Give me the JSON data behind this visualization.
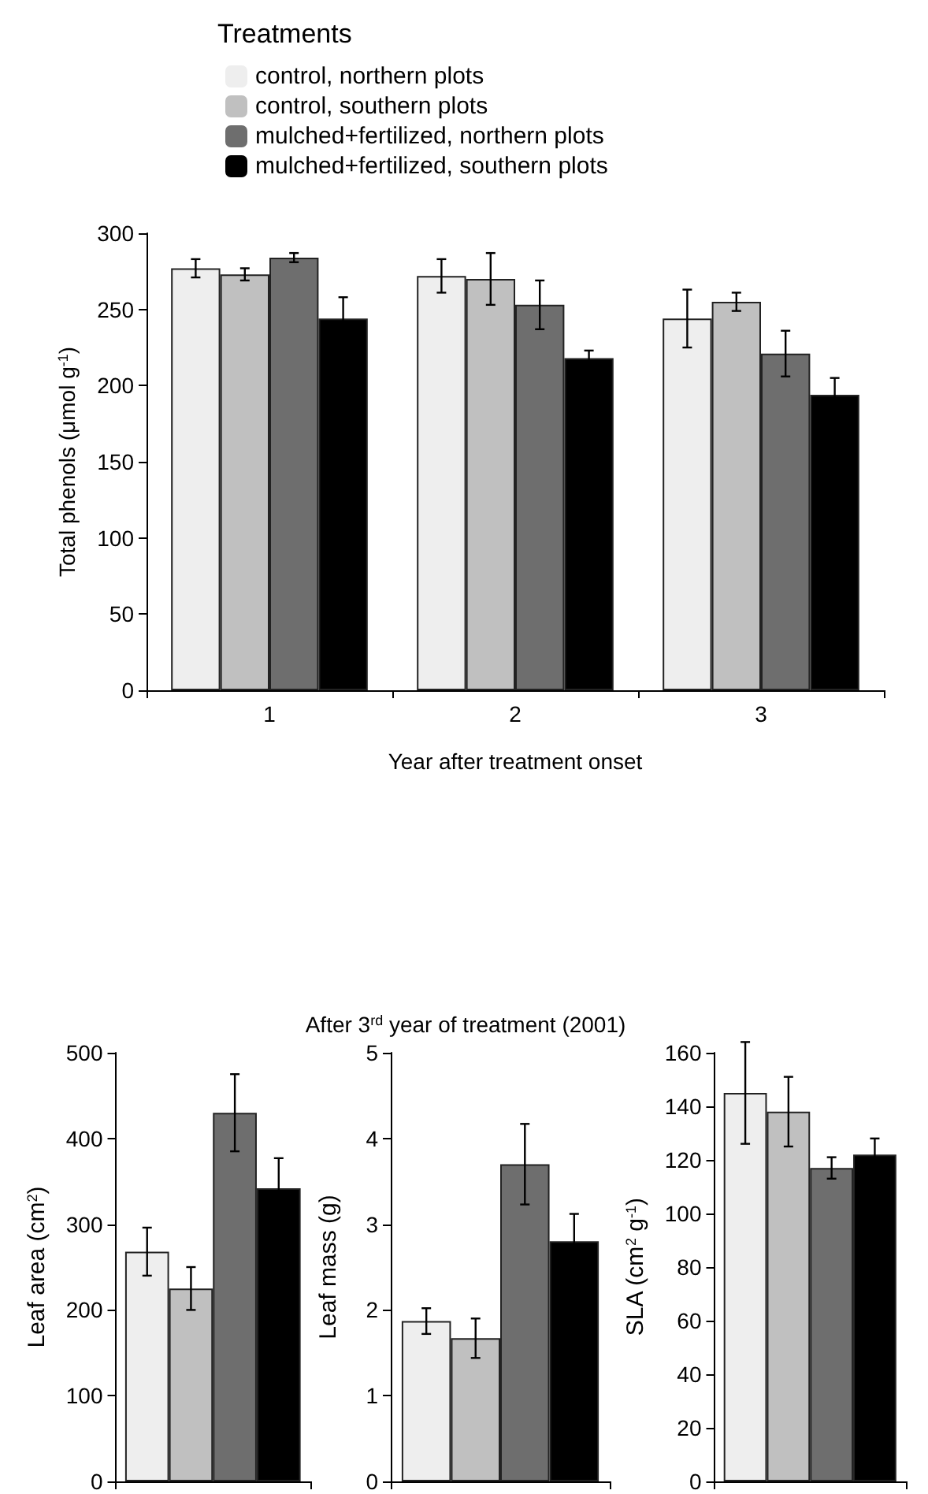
{
  "chart_data": [
    {
      "type": "bar",
      "categories": [
        "1",
        "2",
        "3"
      ],
      "xlabel": "Year after treatment onset",
      "ylabel": "Total phenols (μmol g$^{-1}$)",
      "legend_title": "Treatments",
      "legend": "top",
      "grid": false,
      "ylim": [
        0,
        300
      ],
      "yticks": [
        0,
        50,
        100,
        150,
        200,
        250,
        300
      ],
      "series": [
        {
          "name": "control, northern plots",
          "color": "#eeeeee",
          "values": [
            277,
            272,
            244
          ],
          "errors": [
            6,
            11,
            19
          ]
        },
        {
          "name": "control, southern plots",
          "color": "#c0c0c0",
          "values": [
            273,
            270,
            255
          ],
          "errors": [
            4,
            17,
            6
          ]
        },
        {
          "name": "mulched+fertilized, northern plots",
          "color": "#6e6e6e",
          "values": [
            284,
            253,
            221
          ],
          "errors": [
            3,
            16,
            15
          ]
        },
        {
          "name": "mulched+fertilized, southern plots",
          "color": "#000000",
          "values": [
            244,
            218,
            194
          ],
          "errors": [
            14,
            5,
            11
          ]
        }
      ]
    },
    {
      "type": "bar",
      "categories": [
        null
      ],
      "ylabel": "Leaf area (cm$^{2}$)",
      "legend": false,
      "grid": false,
      "tick_labels": "y",
      "ylim": [
        0,
        500
      ],
      "yticks": [
        0,
        100,
        200,
        300,
        400,
        500
      ],
      "series": [
        {
          "color": "#eeeeee",
          "values": [
            268
          ],
          "errors": [
            28
          ]
        },
        {
          "color": "#c0c0c0",
          "values": [
            225
          ],
          "errors": [
            25
          ]
        },
        {
          "color": "#6e6e6e",
          "values": [
            430
          ],
          "errors": [
            45
          ]
        },
        {
          "color": "#000000",
          "values": [
            342
          ],
          "errors": [
            35
          ]
        }
      ]
    },
    {
      "type": "bar",
      "title": "After 3$^{rd}$ year of treatment (2001)",
      "categories": [
        null
      ],
      "ylabel": "Leaf mass (g)",
      "legend": false,
      "grid": false,
      "tick_labels": "y",
      "ylim": [
        0,
        5
      ],
      "yticks": [
        0,
        1,
        2,
        3,
        4,
        5
      ],
      "series": [
        {
          "color": "#eeeeee",
          "values": [
            1.87
          ],
          "errors": [
            0.15
          ]
        },
        {
          "color": "#c0c0c0",
          "values": [
            1.67
          ],
          "errors": [
            0.23
          ]
        },
        {
          "color": "#6e6e6e",
          "values": [
            3.7
          ],
          "errors": [
            0.47
          ]
        },
        {
          "color": "#000000",
          "values": [
            2.8
          ],
          "errors": [
            0.32
          ]
        }
      ]
    },
    {
      "type": "bar",
      "categories": [
        null
      ],
      "ylabel": "SLA (cm$^{2}$ g$^{-1}$)",
      "legend": false,
      "grid": false,
      "tick_labels": "y",
      "ylim": [
        0,
        160
      ],
      "yticks": [
        0,
        20,
        40,
        60,
        80,
        100,
        120,
        140,
        160
      ],
      "series": [
        {
          "color": "#eeeeee",
          "values": [
            145
          ],
          "errors": [
            19
          ]
        },
        {
          "color": "#c0c0c0",
          "values": [
            138
          ],
          "errors": [
            13
          ]
        },
        {
          "color": "#6e6e6e",
          "values": [
            117
          ],
          "errors": [
            4
          ]
        },
        {
          "color": "#000000",
          "values": [
            122
          ],
          "errors": [
            6
          ]
        }
      ]
    }
  ]
}
